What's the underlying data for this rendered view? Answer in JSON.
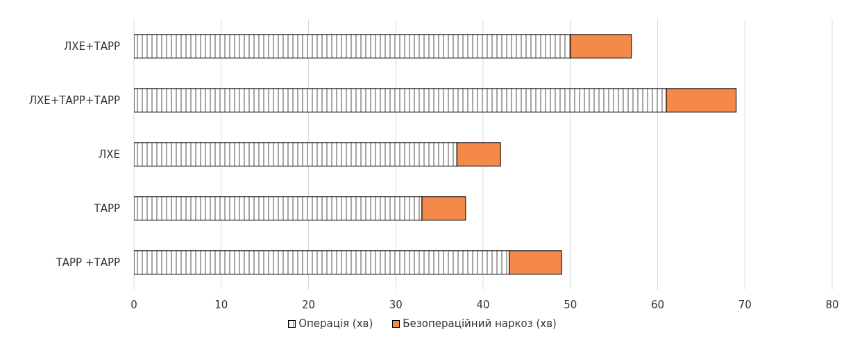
{
  "chart_data": {
    "type": "bar",
    "orientation": "horizontal",
    "stacked": true,
    "categories": [
      "ЛХЕ+ТАРР",
      "ЛХЕ+ТАРР+ТАРР",
      "ЛХЕ",
      "ТАРР",
      "ТАРР +ТАРР"
    ],
    "series": [
      {
        "name": "Операція (хв)",
        "color": "#ffffff",
        "values": [
          50,
          61,
          37,
          33,
          43
        ]
      },
      {
        "name": "Безопераційний наркоз (хв)",
        "color": "#f4894a",
        "values": [
          7,
          8,
          5,
          5,
          6
        ]
      }
    ],
    "xlim": [
      0,
      80
    ],
    "xticks": [
      0,
      10,
      20,
      30,
      40,
      50,
      60,
      70,
      80
    ],
    "grid": "x",
    "legend": "bottom"
  }
}
